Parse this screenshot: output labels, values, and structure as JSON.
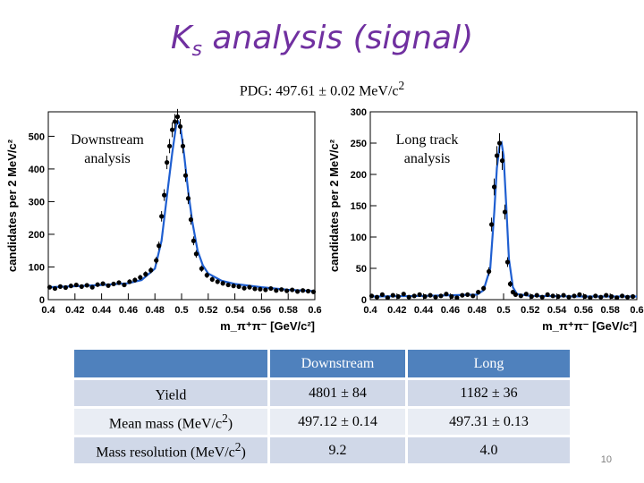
{
  "slide": {
    "title_main": "K",
    "title_sub": "s",
    "title_rest": " analysis (signal)",
    "pdg_prefix": "PDG: 497.61 ± 0.02 MeV/c",
    "pdg_sup": "2",
    "page_number": "10"
  },
  "chart_data": [
    {
      "type": "scatter",
      "label_line1": "Downstream",
      "label_line2": "analysis",
      "ylabel": "candidates per 2 MeV/c²",
      "xlabel": "m_π⁺π⁻ [GeV/c²]",
      "xlim": [
        0.4,
        0.6
      ],
      "ylim": [
        0,
        575
      ],
      "xticks": [
        "0.4",
        "0.42",
        "0.44",
        "0.46",
        "0.48",
        "0.5",
        "0.52",
        "0.54",
        "0.56",
        "0.58",
        "0.6"
      ],
      "yticks": [
        "0",
        "100",
        "200",
        "300",
        "400",
        "500"
      ],
      "x": [
        0.401,
        0.405,
        0.409,
        0.413,
        0.417,
        0.421,
        0.425,
        0.429,
        0.433,
        0.437,
        0.441,
        0.445,
        0.449,
        0.453,
        0.457,
        0.461,
        0.465,
        0.469,
        0.473,
        0.477,
        0.481,
        0.483,
        0.485,
        0.487,
        0.489,
        0.491,
        0.493,
        0.495,
        0.497,
        0.499,
        0.501,
        0.503,
        0.505,
        0.507,
        0.509,
        0.511,
        0.515,
        0.519,
        0.523,
        0.527,
        0.531,
        0.535,
        0.539,
        0.543,
        0.547,
        0.551,
        0.555,
        0.559,
        0.563,
        0.567,
        0.571,
        0.575,
        0.579,
        0.583,
        0.587,
        0.591,
        0.595,
        0.599
      ],
      "y": [
        38,
        34,
        40,
        37,
        42,
        45,
        40,
        44,
        38,
        46,
        49,
        43,
        48,
        52,
        45,
        55,
        60,
        68,
        78,
        90,
        120,
        165,
        255,
        320,
        420,
        470,
        520,
        545,
        560,
        530,
        470,
        380,
        310,
        245,
        180,
        140,
        95,
        75,
        62,
        55,
        50,
        45,
        42,
        40,
        35,
        38,
        33,
        32,
        30,
        34,
        28,
        31,
        27,
        30,
        25,
        28,
        26,
        24
      ],
      "fit_x": [
        0.4,
        0.42,
        0.44,
        0.46,
        0.47,
        0.48,
        0.485,
        0.49,
        0.493,
        0.496,
        0.4975,
        0.499,
        0.502,
        0.505,
        0.508,
        0.512,
        0.516,
        0.52,
        0.53,
        0.54,
        0.56,
        0.58,
        0.6
      ],
      "fit_y": [
        38,
        41,
        45,
        50,
        60,
        95,
        180,
        350,
        450,
        535,
        545,
        535,
        440,
        330,
        240,
        150,
        105,
        80,
        58,
        48,
        38,
        30,
        26
      ]
    },
    {
      "type": "scatter",
      "label_line1": "Long track",
      "label_line2": "analysis",
      "ylabel": "candidates per 2 MeV/c²",
      "xlabel": "m_π⁺π⁻ [GeV/c²]",
      "xlim": [
        0.4,
        0.6
      ],
      "ylim": [
        0,
        300
      ],
      "xticks": [
        "0.4",
        "0.42",
        "0.44",
        "0.46",
        "0.48",
        "0.5",
        "0.52",
        "0.54",
        "0.56",
        "0.58",
        "0.6"
      ],
      "yticks": [
        "0",
        "50",
        "100",
        "150",
        "200",
        "250",
        "300"
      ],
      "x": [
        0.401,
        0.405,
        0.409,
        0.413,
        0.417,
        0.421,
        0.425,
        0.429,
        0.433,
        0.437,
        0.441,
        0.445,
        0.449,
        0.453,
        0.457,
        0.461,
        0.465,
        0.469,
        0.473,
        0.477,
        0.481,
        0.485,
        0.489,
        0.491,
        0.493,
        0.495,
        0.497,
        0.499,
        0.501,
        0.503,
        0.505,
        0.507,
        0.509,
        0.513,
        0.517,
        0.521,
        0.525,
        0.529,
        0.533,
        0.537,
        0.541,
        0.545,
        0.549,
        0.553,
        0.557,
        0.561,
        0.565,
        0.569,
        0.573,
        0.577,
        0.581,
        0.585,
        0.589,
        0.593,
        0.597
      ],
      "y": [
        6,
        4,
        8,
        3,
        7,
        5,
        9,
        4,
        6,
        8,
        5,
        7,
        4,
        6,
        9,
        5,
        3,
        7,
        8,
        6,
        12,
        18,
        45,
        120,
        180,
        230,
        250,
        222,
        140,
        60,
        25,
        12,
        8,
        6,
        9,
        5,
        7,
        4,
        8,
        6,
        5,
        7,
        4,
        6,
        8,
        5,
        3,
        6,
        4,
        7,
        5,
        3,
        6,
        4,
        5
      ],
      "fit_x": [
        0.4,
        0.44,
        0.48,
        0.485,
        0.49,
        0.493,
        0.495,
        0.497,
        0.4985,
        0.5,
        0.502,
        0.504,
        0.507,
        0.51,
        0.52,
        0.56,
        0.6
      ],
      "fit_y": [
        5,
        6,
        8,
        15,
        50,
        140,
        210,
        245,
        250,
        230,
        150,
        65,
        20,
        9,
        6,
        5,
        5
      ]
    }
  ],
  "table": {
    "headers": [
      "",
      "Downstream",
      "Long"
    ],
    "rows": [
      {
        "label": "Yield",
        "label_sup": "",
        "label_end": "",
        "downstream": "4801 ± 84",
        "long": "1182 ± 36"
      },
      {
        "label": "Mean mass (MeV/c",
        "label_sup": "2",
        "label_end": ")",
        "downstream": "497.12 ± 0.14",
        "long": "497.31 ± 0.13"
      },
      {
        "label": "Mass resolution (MeV/c",
        "label_sup": "2",
        "label_end": ")",
        "downstream": "9.2",
        "long": "4.0"
      }
    ]
  }
}
